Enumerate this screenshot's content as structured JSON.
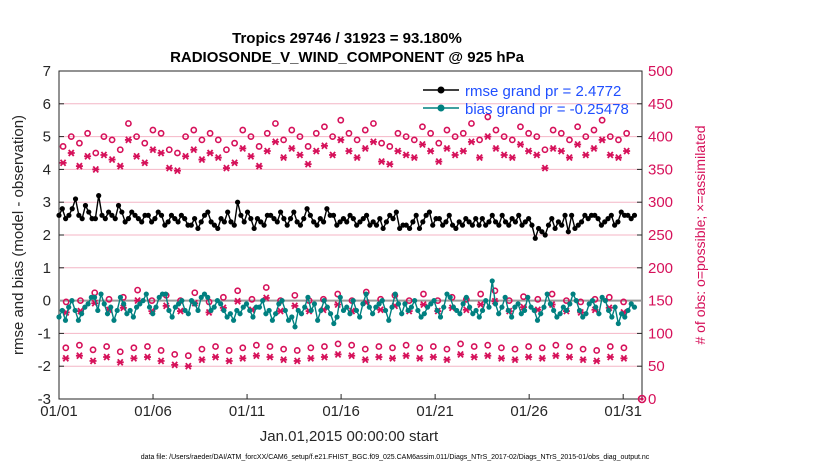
{
  "chart_data": {
    "type": "line",
    "title_line1": "Tropics 29746 / 31923 = 93.180%",
    "title_line2": "RADIOSONDE_V_WIND_COMPONENT @ 925 hPa",
    "xlabel": "Jan.01,2015 00:00:00 start",
    "ylabel_left": "rmse and bias (model - observation)",
    "ylabel_right": "# of obs: o=possible; ×=assimilated",
    "footer": "data file: /Users/raeder/DAI/ATM_forcXX/CAM6_setup/f.e21.FHIST_BGC.f09_025.CAM6assim.011/Diags_NTrS_2017-02/Diags_NTrS_2015-01/obs_diag_output.nc",
    "x_ticks": [
      "01/01",
      "01/06",
      "01/11",
      "01/16",
      "01/21",
      "01/26",
      "01/31"
    ],
    "x_tick_days": [
      1,
      6,
      11,
      16,
      21,
      26,
      31
    ],
    "xlim": [
      1,
      32
    ],
    "ylim_left": [
      -3,
      7
    ],
    "y_ticks_left": [
      "-3",
      "-2",
      "-1",
      "0",
      "1",
      "2",
      "3",
      "4",
      "5",
      "6",
      "7"
    ],
    "ylim_right": [
      0,
      500
    ],
    "y_ticks_right": [
      "0",
      "50",
      "100",
      "150",
      "200",
      "250",
      "300",
      "350",
      "400",
      "450",
      "500"
    ],
    "legend": [
      {
        "name": "rmse",
        "label": "rmse grand pr = 2.4772",
        "color": "#000000"
      },
      {
        "name": "bias",
        "label": "bias grand pr = -0.25478",
        "color": "#008080"
      }
    ],
    "legend_position": "top-right",
    "colors": {
      "rmse": "#000000",
      "bias": "#008080",
      "obs": "#d6115a",
      "zero_line": "#999999",
      "grid": "#f4b6c6"
    },
    "series": [
      {
        "name": "rmse",
        "values": [
          2.6,
          2.8,
          2.5,
          2.6,
          2.8,
          3.1,
          2.6,
          2.5,
          2.9,
          2.7,
          2.5,
          2.5,
          3.2,
          2.6,
          2.5,
          2.7,
          2.6,
          2.5,
          2.9,
          2.7,
          2.4,
          2.5,
          2.7,
          2.6,
          2.5,
          2.4,
          2.6,
          2.6,
          2.4,
          2.5,
          2.7,
          2.6,
          2.3,
          2.4,
          2.6,
          2.5,
          2.4,
          2.6,
          2.5,
          2.3,
          2.3,
          2.5,
          2.2,
          2.4,
          2.6,
          2.7,
          2.4,
          2.3,
          2.2,
          2.5,
          2.4,
          2.7,
          2.4,
          2.3,
          3.0,
          2.6,
          2.4,
          2.7,
          2.5,
          2.2,
          2.5,
          2.4,
          2.3,
          2.6,
          2.6,
          2.5,
          2.4,
          2.7,
          2.5,
          2.3,
          2.5,
          2.7,
          2.4,
          2.3,
          2.5,
          2.8,
          2.6,
          2.4,
          2.3,
          2.5,
          2.4,
          2.8,
          2.6,
          2.6,
          2.3,
          2.4,
          2.5,
          2.4,
          2.6,
          2.5,
          2.3,
          2.4,
          2.5,
          2.6,
          2.3,
          2.4,
          2.3,
          2.5,
          2.2,
          2.4,
          2.6,
          2.5,
          2.7,
          2.2,
          2.3,
          2.3,
          2.2,
          2.4,
          2.6,
          2.2,
          2.4,
          2.6,
          2.7,
          2.3,
          2.5,
          2.5,
          2.3,
          2.4,
          2.6,
          2.3,
          2.2,
          2.4,
          2.3,
          2.5,
          2.4,
          2.3,
          2.5,
          2.3,
          2.5,
          2.3,
          2.4,
          2.6,
          2.4,
          2.3,
          2.6,
          2.4,
          2.3,
          2.5,
          2.4,
          2.6,
          2.3,
          2.4,
          2.5,
          2.3,
          1.9,
          2.2,
          2.1,
          2.0,
          2.3,
          2.5,
          2.2,
          2.4,
          2.3,
          2.6,
          2.1,
          2.6,
          2.2,
          2.3,
          2.4,
          2.6,
          2.5,
          2.6,
          2.6,
          2.5,
          2.3,
          2.4,
          2.5,
          2.6,
          2.3,
          2.4,
          2.7,
          2.6,
          2.6,
          2.5,
          2.6
        ]
      },
      {
        "name": "bias",
        "values": [
          -0.5,
          -0.3,
          -0.6,
          -0.2,
          0.0,
          -0.3,
          -0.6,
          -0.4,
          -0.2,
          -0.1,
          0.1,
          0.1,
          -0.3,
          0.2,
          -0.1,
          -0.4,
          -0.2,
          -0.6,
          -0.3,
          0.1,
          -0.1,
          -0.4,
          -0.3,
          -0.5,
          -0.2,
          -0.1,
          0.0,
          0.2,
          -0.2,
          -0.4,
          -0.2,
          0.1,
          0.2,
          0.2,
          -0.3,
          -0.5,
          -0.2,
          -0.1,
          0.0,
          -0.3,
          -0.4,
          0.0,
          -0.1,
          -0.3,
          0.1,
          0.2,
          0.1,
          -0.3,
          -0.2,
          0.0,
          -0.1,
          -0.3,
          -0.5,
          -0.4,
          -0.6,
          -0.3,
          -0.4,
          -0.2,
          -0.1,
          -0.3,
          -0.5,
          -0.2,
          -0.2,
          0.0,
          -0.4,
          -0.3,
          -0.6,
          -0.4,
          -0.1,
          0.0,
          -0.3,
          -0.6,
          -0.5,
          -0.8,
          -0.3,
          -0.4,
          -0.2,
          0.1,
          -0.3,
          -0.1,
          -0.6,
          -0.3,
          0.0,
          -0.2,
          -0.4,
          -0.7,
          -0.5,
          0.1,
          -0.3,
          -0.2,
          -0.4,
          0.0,
          -0.3,
          -0.5,
          -0.1,
          0.2,
          -0.2,
          -0.4,
          -0.2,
          -0.1,
          0.0,
          -0.3,
          -0.6,
          -0.2,
          0.2,
          -0.1,
          -0.4,
          -0.1,
          -0.3,
          -0.2,
          0.0,
          -0.3,
          -0.5,
          -0.4,
          -0.2,
          -0.1,
          0.0,
          -0.3,
          -0.5,
          -0.2,
          0.2,
          0.1,
          -0.2,
          -0.3,
          -0.4,
          -0.1,
          0.1,
          -0.2,
          -0.4,
          -0.3,
          -0.5,
          -0.3,
          0.0,
          -0.2,
          0.6,
          -0.1,
          -0.4,
          -0.2,
          0.1,
          -0.3,
          -0.5,
          -0.2,
          -0.1,
          -0.4,
          -0.3,
          0.1,
          -0.2,
          -0.3,
          -0.6,
          -0.4,
          -0.2,
          0.2,
          -0.1,
          -0.3,
          -0.5,
          -0.4,
          -0.2,
          -0.3,
          -0.1,
          0.2,
          0.0,
          -0.3,
          -0.5,
          -0.4,
          -0.1,
          0.0,
          -0.2,
          -0.4,
          0.1,
          0.0,
          -0.3,
          -0.5,
          -0.2,
          -0.7,
          -0.4,
          -0.5,
          -0.3,
          -0.1,
          -0.2
        ]
      },
      {
        "name": "obs_possible_high",
        "values": [
          385,
          400,
          390,
          405,
          375,
          400,
          395,
          380,
          420,
          400,
          390,
          410,
          405,
          380,
          375,
          400,
          410,
          395,
          405,
          395,
          380,
          390,
          410,
          400,
          385,
          405,
          420,
          395,
          410,
          400,
          385,
          405,
          415,
          400,
          425,
          405,
          395,
          410,
          420,
          390,
          385,
          405,
          400,
          395,
          415,
          405,
          390,
          410,
          400,
          405,
          420,
          395,
          430,
          410,
          400,
          395,
          415,
          405,
          400,
          380,
          410,
          405,
          395,
          415,
          400,
          410,
          425,
          400,
          395,
          405
        ]
      },
      {
        "name": "obs_possible_low",
        "values": [
          78,
          82,
          75,
          80,
          72,
          78,
          80,
          74,
          68,
          66,
          76,
          80,
          74,
          78,
          82,
          80,
          76,
          74,
          78,
          80,
          84,
          82,
          76,
          80,
          78,
          82,
          78,
          80,
          76,
          84,
          80,
          82,
          78,
          76,
          80,
          78,
          82,
          80,
          76,
          74,
          80,
          78
        ]
      },
      {
        "name": "obs_possible_mid",
        "values": [
          148,
          150,
          162,
          152,
          155,
          166,
          150,
          158,
          150,
          162,
          148,
          155,
          165,
          152,
          170,
          150,
          158,
          150,
          152,
          160,
          150,
          163,
          152,
          158,
          150,
          160,
          150,
          155,
          152,
          160,
          165,
          150,
          156,
          152,
          160,
          150,
          148,
          152,
          155,
          148
        ]
      },
      {
        "name": "obs_assimilated_high",
        "values": [
          360,
          375,
          355,
          370,
          350,
          372,
          365,
          355,
          395,
          370,
          360,
          380,
          375,
          352,
          348,
          370,
          380,
          365,
          375,
          368,
          352,
          360,
          382,
          370,
          355,
          378,
          392,
          368,
          382,
          372,
          358,
          378,
          386,
          372,
          395,
          378,
          368,
          382,
          392,
          362,
          358,
          378,
          372,
          368,
          388,
          378,
          362,
          382,
          372,
          378,
          392,
          368,
          400,
          382,
          372,
          368,
          388,
          378,
          372,
          352,
          382,
          378,
          368,
          388,
          372,
          382,
          395,
          372,
          368,
          378
        ]
      },
      {
        "name": "obs_assimilated_low",
        "values": [
          62,
          66,
          58,
          64,
          56,
          62,
          64,
          58,
          52,
          50,
          60,
          64,
          58,
          62,
          66,
          64,
          60,
          58,
          62,
          64,
          68,
          66,
          60,
          64,
          62,
          66,
          62,
          64,
          60,
          68,
          64,
          66,
          62,
          60,
          64,
          62,
          66,
          64,
          60,
          58,
          64,
          62
        ]
      },
      {
        "name": "obs_assimilated_mid",
        "values": [
          132,
          134,
          146,
          136,
          139,
          150,
          134,
          142,
          134,
          146,
          132,
          139,
          149,
          136,
          154,
          134,
          142,
          134,
          136,
          144,
          134,
          147,
          136,
          142,
          134,
          144,
          134,
          139,
          136,
          144,
          149,
          134,
          140,
          136,
          144,
          134,
          132,
          136,
          139,
          132
        ]
      }
    ]
  }
}
